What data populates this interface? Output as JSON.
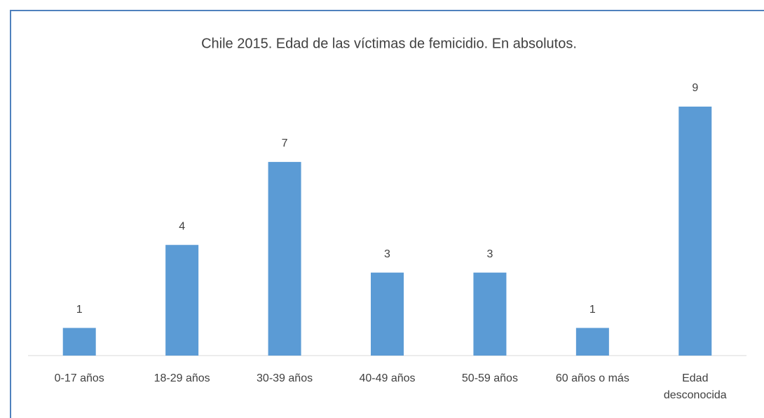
{
  "chart_data": {
    "type": "bar",
    "title": "Chile 2015.  Edad de las víctimas de femicidio. En absolutos.",
    "categories": [
      "0-17 años",
      "18-29 años",
      "30-39 años",
      "40-49 años",
      "50-59 años",
      "60 años o más",
      "Edad desconocida"
    ],
    "values": [
      1,
      4,
      7,
      3,
      3,
      1,
      9
    ],
    "color": "#5b9bd5"
  }
}
